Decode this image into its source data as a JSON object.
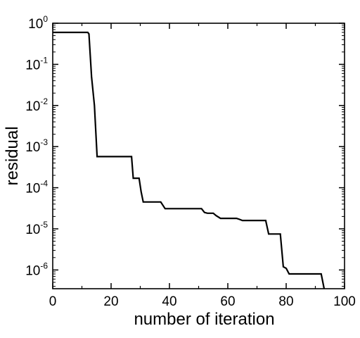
{
  "chart_data": {
    "type": "line",
    "title": "",
    "xlabel": "number of iteration",
    "ylabel": "residual",
    "xlim": [
      0,
      100
    ],
    "ylim": [
      3.5e-07,
      1
    ],
    "yscale": "log",
    "grid": false,
    "legend": "none",
    "xticks": [
      {
        "value": 0,
        "label": "0"
      },
      {
        "value": 20,
        "label": "20"
      },
      {
        "value": 40,
        "label": "40"
      },
      {
        "value": 60,
        "label": "60"
      },
      {
        "value": 80,
        "label": "80"
      },
      {
        "value": 100,
        "label": "100"
      }
    ],
    "yticks": [
      {
        "value": 1,
        "base": "10",
        "exp": "0"
      },
      {
        "value": 0.1,
        "base": "10",
        "exp": "-1"
      },
      {
        "value": 0.01,
        "base": "10",
        "exp": "-2"
      },
      {
        "value": 0.001,
        "base": "10",
        "exp": "-3"
      },
      {
        "value": 0.0001,
        "base": "10",
        "exp": "-4"
      },
      {
        "value": 1e-05,
        "base": "10",
        "exp": "-5"
      },
      {
        "value": 1e-06,
        "base": "10",
        "exp": "-6"
      }
    ],
    "series": [
      {
        "color": "#000000",
        "x": [
          0,
          12,
          12.4,
          13.3,
          14.3,
          15.2,
          27,
          27.6,
          29.6,
          30.3,
          31,
          37,
          38.5,
          51,
          52,
          53,
          55,
          56,
          57.5,
          63,
          64,
          65,
          73,
          74,
          77,
          78,
          79,
          80,
          81,
          86,
          92,
          93
        ],
        "y": [
          0.6,
          0.6,
          0.55,
          0.05,
          0.01,
          0.00057,
          0.00057,
          0.00017,
          0.00017,
          8e-05,
          4.5e-05,
          4.5e-05,
          3.1e-05,
          3.1e-05,
          2.5e-05,
          2.4e-05,
          2.4e-05,
          2.1e-05,
          1.8e-05,
          1.8e-05,
          1.7e-05,
          1.6e-05,
          1.6e-05,
          7.5e-06,
          7.5e-06,
          7.5e-06,
          1.2e-06,
          1.1e-06,
          8e-07,
          8e-07,
          8e-07,
          3.5e-07
        ]
      }
    ]
  }
}
